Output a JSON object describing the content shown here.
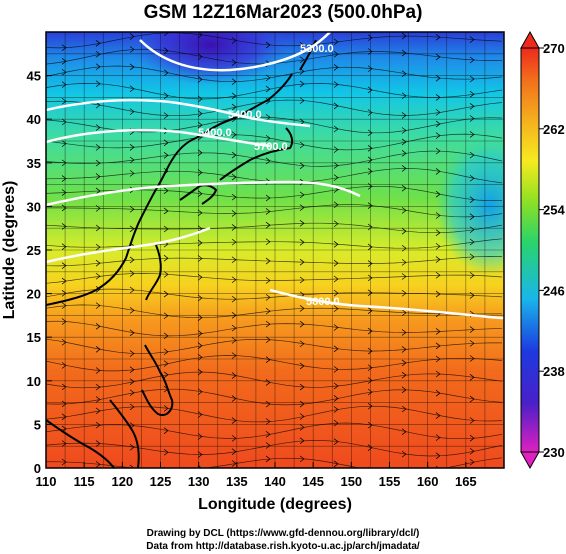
{
  "title": "GSM 12Z16Mar2023 (500.0hPa)",
  "xaxis": {
    "label": "Longitude (degrees)",
    "range": [
      110,
      170
    ],
    "ticks": [
      "110",
      "115",
      "120",
      "125",
      "130",
      "135",
      "140",
      "145",
      "150",
      "155",
      "160",
      "165"
    ]
  },
  "yaxis": {
    "label": "Latitude  (degrees)",
    "range": [
      0,
      50
    ],
    "ticks": [
      "0",
      "5",
      "10",
      "15",
      "20",
      "25",
      "30",
      "35",
      "40",
      "45"
    ]
  },
  "colorbar": {
    "range": [
      230,
      270
    ],
    "ticks": [
      "230",
      "238",
      "246",
      "254",
      "262",
      "270"
    ]
  },
  "contours": [
    {
      "label": "5400.0",
      "color": "#ffffff"
    },
    {
      "label": "5400.0",
      "color": "#ffffff"
    },
    {
      "label": "5700.0",
      "color": "#ffffff"
    },
    {
      "label": "5700.0",
      "color": "#ffffff"
    },
    {
      "label": "5300.0",
      "color": "#ffffff"
    },
    {
      "label": "5800.0",
      "color": "#ffffff"
    }
  ],
  "credits": {
    "line1": "Drawing by DCL (https://www.gfd-dennou.org/library/dcl/)",
    "line2": "Data from http://database.rish.kyoto-u.ac.jp/arch/jmadata/"
  }
}
